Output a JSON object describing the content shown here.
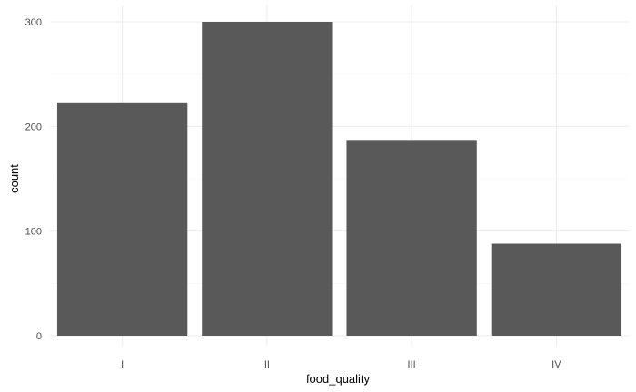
{
  "chart_data": {
    "type": "bar",
    "title": "",
    "xlabel": "food_quality",
    "ylabel": "count",
    "categories": [
      "I",
      "II",
      "III",
      "IV"
    ],
    "values": [
      223,
      300,
      187,
      88
    ],
    "ylim": [
      0,
      315
    ],
    "yticks": [
      0,
      100,
      200,
      300
    ],
    "grid": true,
    "legend": "none",
    "colors": {
      "bar": "#595959",
      "grid_major": "#ebebeb",
      "grid_minor": "#f5f5f5",
      "background": "#ffffff"
    }
  }
}
